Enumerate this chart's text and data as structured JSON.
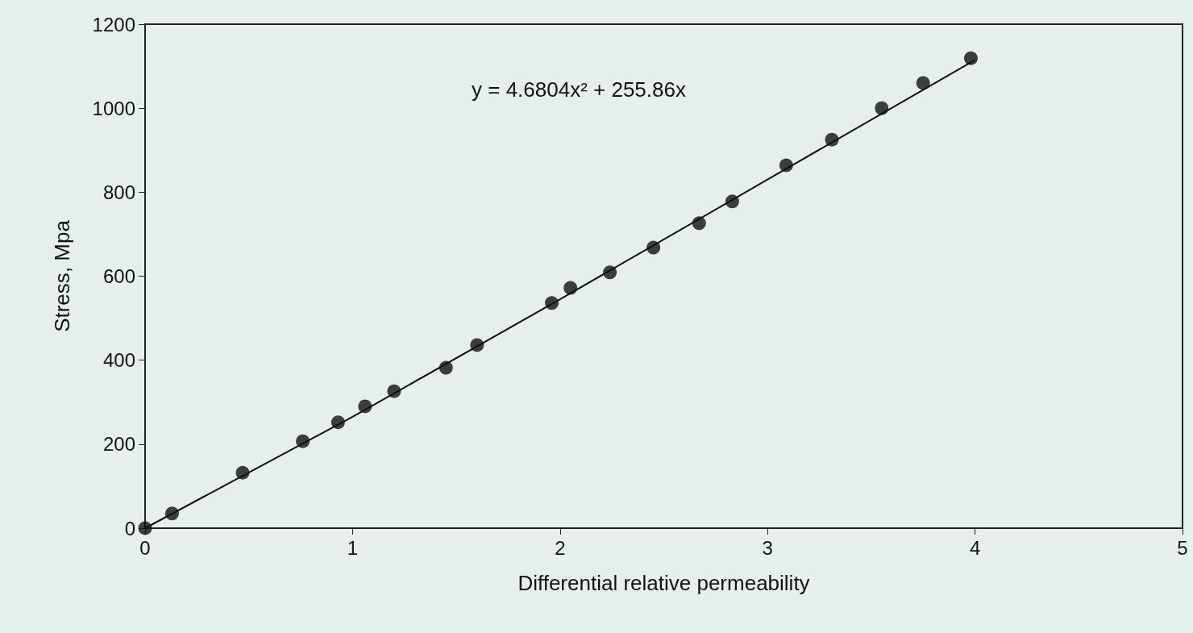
{
  "chart_data": {
    "type": "scatter",
    "xlabel": "Differential relative permeability",
    "ylabel": "Stress, Mpa",
    "xlim": [
      0,
      5
    ],
    "xticks": [
      0,
      1,
      2,
      3,
      4,
      5
    ],
    "ylim": [
      0,
      1200
    ],
    "yticks": [
      0,
      200,
      400,
      600,
      800,
      1000,
      1200
    ],
    "grid": false,
    "annotations": [
      "y = 4.6804x² + 255.86x"
    ],
    "series": [
      {
        "color": "#111111",
        "marker": "circle",
        "x": [
          0,
          0.13,
          0.47,
          0.76,
          0.93,
          1.06,
          1.2,
          1.45,
          1.6,
          1.96,
          2.05,
          2.24,
          2.45,
          2.67,
          2.83,
          3.09,
          3.31,
          3.55,
          3.75,
          3.98
        ],
        "values": [
          0,
          35,
          132,
          207,
          252,
          290,
          326,
          382,
          436,
          536,
          572,
          609,
          668,
          726,
          778,
          864,
          925,
          1000,
          1060,
          1119
        ]
      },
      {
        "type": "line",
        "color": "#111111",
        "marker": "none",
        "line_style": "solid",
        "x": [
          0,
          1,
          2,
          3,
          4
        ],
        "values": [
          0,
          265,
          545,
          830,
          1115
        ]
      }
    ]
  }
}
